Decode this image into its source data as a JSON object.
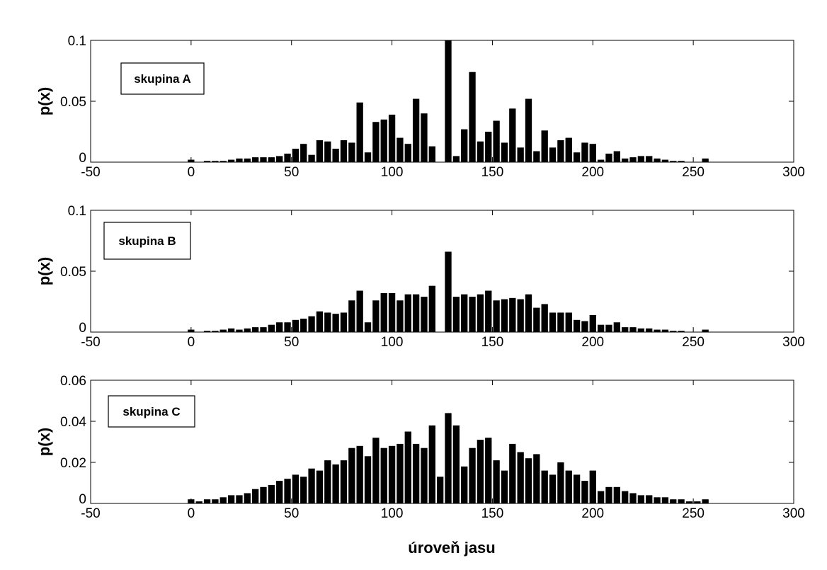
{
  "chart_data": [
    {
      "type": "bar",
      "ylabel": "p(x)",
      "xlabel": "",
      "xlim": [
        -50,
        300
      ],
      "ylim": [
        0,
        0.1
      ],
      "xticks": [
        -50,
        0,
        50,
        100,
        150,
        200,
        250,
        300
      ],
      "yticks": [
        0,
        0.05,
        0.1
      ],
      "ytick_labels": [
        "0",
        "0.05",
        "0.1"
      ],
      "annotation": "skupina A",
      "bar_color": "#000000",
      "series": [
        {
          "x": [
            0,
            4,
            8,
            12,
            16,
            20,
            24,
            28,
            32,
            36,
            40,
            44,
            48,
            52,
            56,
            60,
            64,
            68,
            72,
            76,
            80,
            84,
            88,
            92,
            96,
            100,
            104,
            108,
            112,
            116,
            120,
            124,
            128,
            132,
            136,
            140,
            144,
            148,
            152,
            156,
            160,
            164,
            168,
            172,
            176,
            180,
            184,
            188,
            192,
            196,
            200,
            204,
            208,
            212,
            216,
            220,
            224,
            228,
            232,
            236,
            240,
            244,
            248,
            252,
            256
          ],
          "values": [
            0.002,
            0,
            0.001,
            0.001,
            0.001,
            0.002,
            0.003,
            0.003,
            0.004,
            0.004,
            0.004,
            0.005,
            0.007,
            0.011,
            0.015,
            0.006,
            0.018,
            0.017,
            0.011,
            0.018,
            0.016,
            0.049,
            0.008,
            0.033,
            0.035,
            0.039,
            0.02,
            0.015,
            0.052,
            0.04,
            0.013,
            0,
            0.1,
            0.005,
            0.027,
            0.074,
            0.017,
            0.025,
            0.034,
            0.016,
            0.044,
            0.012,
            0.052,
            0.009,
            0.026,
            0.012,
            0.018,
            0.02,
            0.008,
            0.016,
            0.015,
            0.002,
            0.007,
            0.009,
            0.003,
            0.004,
            0.005,
            0.005,
            0.003,
            0.002,
            0.001,
            0.001,
            0,
            0,
            0.003
          ]
        }
      ]
    },
    {
      "type": "bar",
      "ylabel": "p(x)",
      "xlabel": "",
      "xlim": [
        -50,
        300
      ],
      "ylim": [
        0,
        0.1
      ],
      "xticks": [
        -50,
        0,
        50,
        100,
        150,
        200,
        250,
        300
      ],
      "yticks": [
        0,
        0.05,
        0.1
      ],
      "ytick_labels": [
        "0",
        "0.05",
        "0.1"
      ],
      "annotation": "skupina B",
      "bar_color": "#000000",
      "series": [
        {
          "x": [
            0,
            4,
            8,
            12,
            16,
            20,
            24,
            28,
            32,
            36,
            40,
            44,
            48,
            52,
            56,
            60,
            64,
            68,
            72,
            76,
            80,
            84,
            88,
            92,
            96,
            100,
            104,
            108,
            112,
            116,
            120,
            124,
            128,
            132,
            136,
            140,
            144,
            148,
            152,
            156,
            160,
            164,
            168,
            172,
            176,
            180,
            184,
            188,
            192,
            196,
            200,
            204,
            208,
            212,
            216,
            220,
            224,
            228,
            232,
            236,
            240,
            244,
            248,
            252,
            256
          ],
          "values": [
            0.002,
            0,
            0.001,
            0.001,
            0.002,
            0.003,
            0.002,
            0.003,
            0.004,
            0.004,
            0.006,
            0.008,
            0.008,
            0.01,
            0.011,
            0.013,
            0.017,
            0.016,
            0.015,
            0.016,
            0.026,
            0.034,
            0.008,
            0.026,
            0.032,
            0.032,
            0.026,
            0.031,
            0.031,
            0.029,
            0.038,
            0,
            0.066,
            0.029,
            0.031,
            0.029,
            0.031,
            0.034,
            0.026,
            0.027,
            0.028,
            0.027,
            0.031,
            0.02,
            0.023,
            0.016,
            0.016,
            0.016,
            0.01,
            0.009,
            0.014,
            0.006,
            0.006,
            0.008,
            0.004,
            0.004,
            0.003,
            0.003,
            0.002,
            0.002,
            0.001,
            0.001,
            0,
            0,
            0.002
          ]
        }
      ]
    },
    {
      "type": "bar",
      "ylabel": "p(x)",
      "xlabel": "úroveň jasu",
      "xlim": [
        -50,
        300
      ],
      "ylim": [
        0,
        0.06
      ],
      "xticks": [
        -50,
        0,
        50,
        100,
        150,
        200,
        250,
        300
      ],
      "yticks": [
        0,
        0.02,
        0.04,
        0.06
      ],
      "ytick_labels": [
        "0",
        "0.02",
        "0.04",
        "0.06"
      ],
      "annotation": "skupina C",
      "bar_color": "#000000",
      "series": [
        {
          "x": [
            0,
            4,
            8,
            12,
            16,
            20,
            24,
            28,
            32,
            36,
            40,
            44,
            48,
            52,
            56,
            60,
            64,
            68,
            72,
            76,
            80,
            84,
            88,
            92,
            96,
            100,
            104,
            108,
            112,
            116,
            120,
            124,
            128,
            132,
            136,
            140,
            144,
            148,
            152,
            156,
            160,
            164,
            168,
            172,
            176,
            180,
            184,
            188,
            192,
            196,
            200,
            204,
            208,
            212,
            216,
            220,
            224,
            228,
            232,
            236,
            240,
            244,
            248,
            252,
            256
          ],
          "values": [
            0.002,
            0.001,
            0.002,
            0.002,
            0.003,
            0.004,
            0.004,
            0.005,
            0.007,
            0.008,
            0.009,
            0.011,
            0.012,
            0.014,
            0.013,
            0.017,
            0.016,
            0.021,
            0.019,
            0.021,
            0.027,
            0.028,
            0.023,
            0.032,
            0.027,
            0.028,
            0.029,
            0.035,
            0.029,
            0.027,
            0.038,
            0.013,
            0.044,
            0.038,
            0.018,
            0.027,
            0.031,
            0.032,
            0.021,
            0.016,
            0.029,
            0.025,
            0.022,
            0.024,
            0.016,
            0.014,
            0.02,
            0.016,
            0.014,
            0.011,
            0.016,
            0.006,
            0.008,
            0.008,
            0.006,
            0.005,
            0.004,
            0.004,
            0.003,
            0.003,
            0.002,
            0.002,
            0.001,
            0.001,
            0.002
          ]
        }
      ]
    }
  ]
}
